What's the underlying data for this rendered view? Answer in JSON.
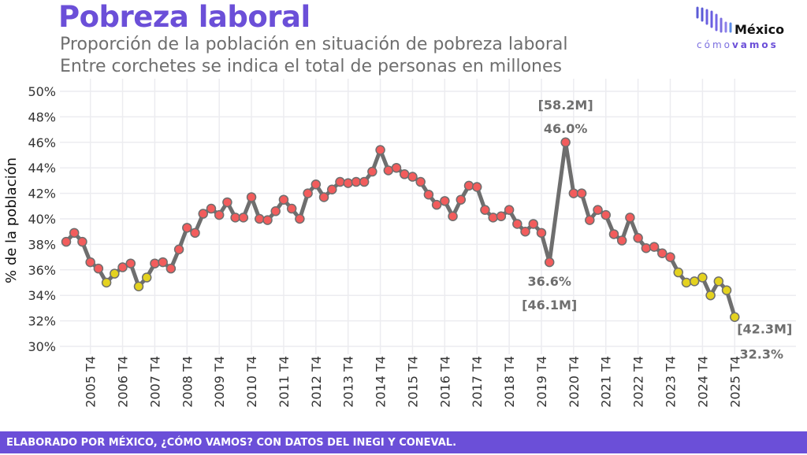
{
  "header": {
    "title": "Pobreza laboral",
    "subtitle1": "Proporción de la población en situación de pobreza laboral",
    "subtitle2": "Entre corchetes se indica el total de personas en millones"
  },
  "logo": {
    "name": "México",
    "tag1": "cómo",
    "tag2": "vamos"
  },
  "footer": {
    "text": "ELABORADO POR MÉXICO, ¿CÓMO VAMOS? CON DATOS DEL INEGI Y CONEVAL."
  },
  "colors": {
    "accent": "#6b4fd8",
    "line": "#6e6e6e",
    "point_red": "#f25c5c",
    "point_yellow": "#e4d21f"
  },
  "chart_data": {
    "type": "line",
    "title": "Pobreza laboral",
    "xlabel": "",
    "ylabel": "% de la población",
    "ylim": [
      30,
      50
    ],
    "yticks": [
      "30%",
      "32%",
      "34%",
      "36%",
      "38%",
      "40%",
      "42%",
      "44%",
      "46%",
      "48%",
      "50%"
    ],
    "xticks": [
      "2005 T4",
      "2006 T4",
      "2007 T4",
      "2008 T4",
      "2009 T4",
      "2010 T4",
      "2011 T4",
      "2012 T4",
      "2013 T4",
      "2014 T4",
      "2015 T4",
      "2016 T4",
      "2017 T4",
      "2018 T4",
      "2019 T4",
      "2020 T4",
      "2021 T4",
      "2022 T4",
      "2023 T4",
      "2024 T4",
      "2025 T4"
    ],
    "grid": true,
    "x": [
      "2005 T1",
      "2005 T2",
      "2005 T3",
      "2005 T4",
      "2006 T1",
      "2006 T2",
      "2006 T3",
      "2006 T4",
      "2007 T1",
      "2007 T2",
      "2007 T3",
      "2007 T4",
      "2008 T1",
      "2008 T2",
      "2008 T3",
      "2008 T4",
      "2009 T1",
      "2009 T2",
      "2009 T3",
      "2009 T4",
      "2010 T1",
      "2010 T2",
      "2010 T3",
      "2010 T4",
      "2011 T1",
      "2011 T2",
      "2011 T3",
      "2011 T4",
      "2012 T1",
      "2012 T2",
      "2012 T3",
      "2012 T4",
      "2013 T1",
      "2013 T2",
      "2013 T3",
      "2013 T4",
      "2014 T1",
      "2014 T2",
      "2014 T3",
      "2014 T4",
      "2015 T1",
      "2015 T2",
      "2015 T3",
      "2015 T4",
      "2016 T1",
      "2016 T2",
      "2016 T3",
      "2016 T4",
      "2017 T1",
      "2017 T2",
      "2017 T3",
      "2017 T4",
      "2018 T1",
      "2018 T2",
      "2018 T3",
      "2018 T4",
      "2019 T1",
      "2019 T2",
      "2019 T3",
      "2019 T4",
      "2020 T1",
      "2020 T3",
      "2020 T4",
      "2021 T1",
      "2021 T2",
      "2021 T3",
      "2021 T4",
      "2022 T1",
      "2022 T2",
      "2022 T3",
      "2022 T4",
      "2023 T1",
      "2023 T2",
      "2023 T3",
      "2023 T4",
      "2024 T1",
      "2024 T2",
      "2024 T3",
      "2024 T4",
      "2025 T1",
      "2025 T2",
      "2025 T3",
      "2025 T4"
    ],
    "values": [
      38.2,
      38.9,
      38.2,
      36.6,
      36.1,
      35.0,
      35.7,
      36.2,
      36.5,
      34.7,
      35.4,
      36.5,
      36.6,
      36.1,
      37.6,
      39.3,
      38.9,
      40.4,
      40.8,
      40.3,
      41.3,
      40.1,
      40.1,
      41.7,
      40.0,
      39.9,
      40.6,
      41.5,
      40.8,
      40.0,
      42.0,
      42.7,
      41.7,
      42.3,
      42.9,
      42.8,
      42.9,
      42.9,
      43.7,
      45.4,
      43.8,
      44.0,
      43.5,
      43.3,
      42.9,
      41.9,
      41.1,
      41.4,
      40.2,
      41.5,
      42.6,
      42.5,
      40.7,
      40.1,
      40.2,
      40.7,
      39.6,
      39.0,
      39.6,
      38.9,
      36.6,
      46.0,
      42.0,
      42.0,
      39.9,
      40.7,
      40.3,
      38.8,
      38.3,
      40.1,
      38.5,
      37.7,
      37.8,
      37.3,
      37.0,
      35.8,
      35.0,
      35.1,
      35.4,
      34.0,
      35.1,
      34.4,
      32.3
    ],
    "highlight_yellow": [
      "2006 T2",
      "2006 T3",
      "2007 T2",
      "2007 T3",
      "2024 T1",
      "2024 T2",
      "2024 T3",
      "2024 T4",
      "2025 T1",
      "2025 T2",
      "2025 T3",
      "2025 T4"
    ],
    "annotations": [
      {
        "x": "2020 T3",
        "value_label": "46.0%",
        "people_label": "[58.2M]",
        "position": "above"
      },
      {
        "x": "2020 T1",
        "value_label": "36.6%",
        "people_label": "[46.1M]",
        "position": "below"
      },
      {
        "x": "2025 T4",
        "value_label": "32.3%",
        "people_label": "[42.3M]",
        "position": "right-below"
      }
    ]
  }
}
